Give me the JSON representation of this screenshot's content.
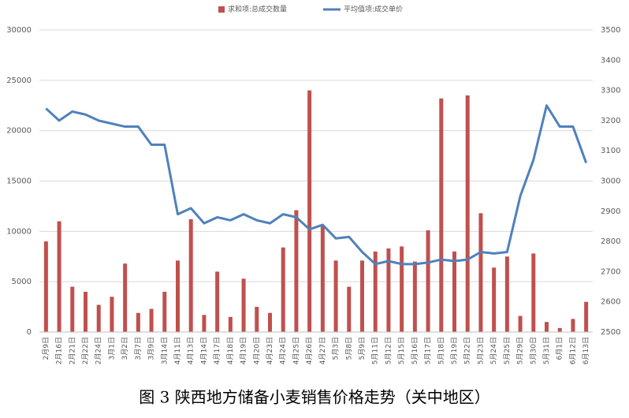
{
  "chart_data": {
    "type": "bar",
    "title": "图 3 陕西地方储备小麦销售价格走势（关中地区）",
    "categories": [
      "2月9日",
      "2月16日",
      "2月21日",
      "2月22日",
      "2月24日",
      "3月1日",
      "3月2日",
      "3月7日",
      "3月9日",
      "3月14日",
      "4月11日",
      "4月13日",
      "4月14日",
      "4月17日",
      "4月18日",
      "4月19日",
      "4月20日",
      "4月23日",
      "4月24日",
      "4月25日",
      "4月26日",
      "4月27日",
      "5月3日",
      "5月8日",
      "5月9日",
      "5月11日",
      "5月12日",
      "5月15日",
      "5月16日",
      "5月17日",
      "5月18日",
      "5月19日",
      "5月22日",
      "5月23日",
      "5月24日",
      "5月25日",
      "5月29日",
      "5月30日",
      "5月31日",
      "6月1日",
      "6月12日",
      "6月13日"
    ],
    "series": [
      {
        "name": "求和项:总成交数量",
        "type": "bar",
        "color": "#c0504d",
        "values": [
          9000,
          11000,
          4500,
          4000,
          2700,
          3500,
          6800,
          1900,
          2300,
          4000,
          7100,
          11200,
          1700,
          6000,
          1500,
          5300,
          2500,
          1900,
          8400,
          12100,
          24000,
          10500,
          7100,
          4500,
          7100,
          8000,
          8300,
          8500,
          7000,
          10100,
          23200,
          8000,
          23500,
          11800,
          6400,
          7500,
          1600,
          7800,
          1000,
          400,
          1300,
          3000
        ]
      },
      {
        "name": "平均值项:成交单价",
        "type": "line",
        "axis": "y2",
        "color": "#4f81bd",
        "values": [
          3240,
          3200,
          3230,
          3220,
          3200,
          3190,
          3180,
          3180,
          3120,
          3120,
          2890,
          2910,
          2860,
          2880,
          2870,
          2890,
          2870,
          2860,
          2890,
          2880,
          2840,
          2855,
          2810,
          2815,
          2765,
          2725,
          2735,
          2725,
          2725,
          2730,
          2740,
          2735,
          2740,
          2765,
          2760,
          2765,
          2950,
          3070,
          3250,
          3180,
          3180,
          3060
        ]
      }
    ],
    "ylim": [
      0,
      30000
    ],
    "yticks": [
      0,
      5000,
      10000,
      15000,
      20000,
      25000,
      30000
    ],
    "y2lim": [
      2500,
      3500
    ],
    "y2ticks": [
      2500,
      2600,
      2700,
      2800,
      2900,
      3000,
      3100,
      3200,
      3300,
      3400,
      3500
    ],
    "grid": true,
    "legend": "top"
  }
}
